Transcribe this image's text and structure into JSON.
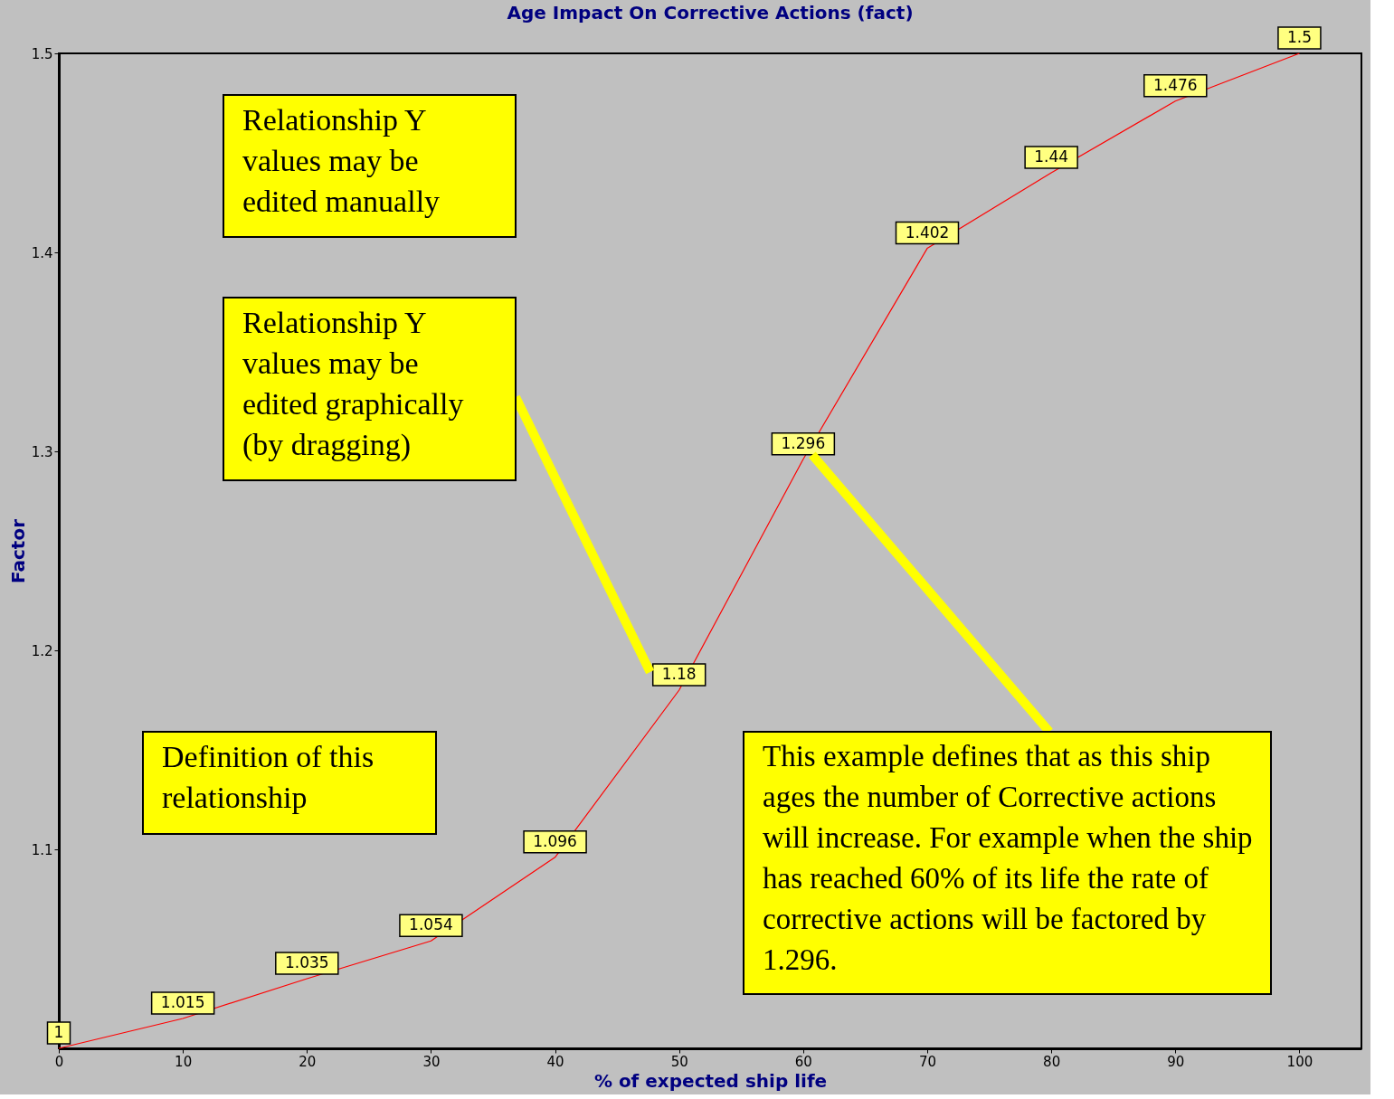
{
  "chart_data": {
    "type": "line",
    "title": "Age Impact On Corrective Actions (fact)",
    "xlabel": "% of expected ship life",
    "ylabel": "Factor",
    "x": [
      0,
      10,
      20,
      30,
      40,
      50,
      60,
      70,
      80,
      90,
      100
    ],
    "series": [
      {
        "color": "#ff0000",
        "values": [
          1,
          1.015,
          1.035,
          1.054,
          1.096,
          1.18,
          1.296,
          1.402,
          1.44,
          1.476,
          1.5
        ]
      }
    ],
    "xlim": [
      0,
      105
    ],
    "xticks": [
      0,
      10,
      20,
      30,
      40,
      50,
      60,
      70,
      80,
      90,
      100
    ],
    "ylim": [
      1,
      1.5
    ],
    "yticks": [
      1.1,
      1.2,
      1.3,
      1.4,
      1.5
    ],
    "data_labels": true,
    "grid": false,
    "annotations": [
      "Relationship Y values may be edited manually",
      "Relationship Y values may be edited graphically (by dragging)",
      "Definition of this relationship",
      "This example defines that as this ship ages the number of Corrective actions will increase. For example when the ship has reached 60% of its life the rate of corrective actions will be factored by 1.296."
    ]
  }
}
